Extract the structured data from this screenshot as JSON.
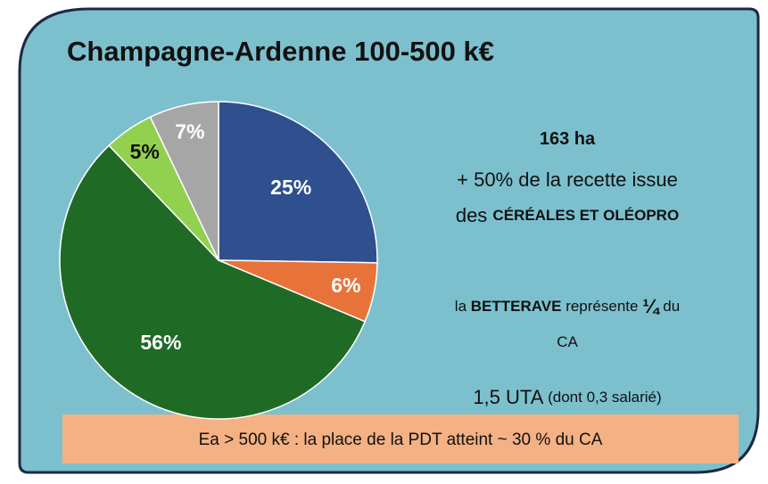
{
  "chart_data": {
    "type": "pie",
    "title": "Champagne-Ardenne 100-500 k€",
    "values": [
      25,
      6,
      56,
      5,
      7
    ],
    "value_labels": [
      "25%",
      "6%",
      "56%",
      "5%",
      "7%"
    ],
    "colors": [
      "#2f4f8f",
      "#e8733a",
      "#1f6b26",
      "#92d050",
      "#a6a6a6"
    ],
    "label_colors": [
      "#ffffff",
      "#ffffff",
      "#ffffff",
      "#111111",
      "#ffffff"
    ],
    "annotations": [
      {
        "runs": [
          {
            "text": "163 ha",
            "bold": true
          }
        ]
      },
      {
        "runs": [
          {
            "text": "+ 50% de la recette issue"
          }
        ]
      },
      {
        "runs": [
          {
            "text": "des "
          },
          {
            "text": "CÉRÉALES ET OLÉOPRO",
            "bold": true,
            "small": true
          }
        ]
      },
      {
        "runs": [
          {
            "text": "la ",
            "small": true
          },
          {
            "text": "BETTERAVE",
            "bold": true,
            "small": true
          },
          {
            "text": " représente ",
            "small": true
          },
          {
            "text": "¼",
            "bold": true
          },
          {
            "text": " du",
            "small": true
          }
        ]
      },
      {
        "runs": [
          {
            "text": "CA",
            "small": true
          }
        ]
      },
      {
        "runs": [
          {
            "text": "1,5 UTA"
          },
          {
            "text": " (dont 0,3 salarié)",
            "small": true
          }
        ]
      }
    ],
    "footer": "Ea > 500 k€ : la place de la PDT atteint ~ 30 % du CA"
  }
}
